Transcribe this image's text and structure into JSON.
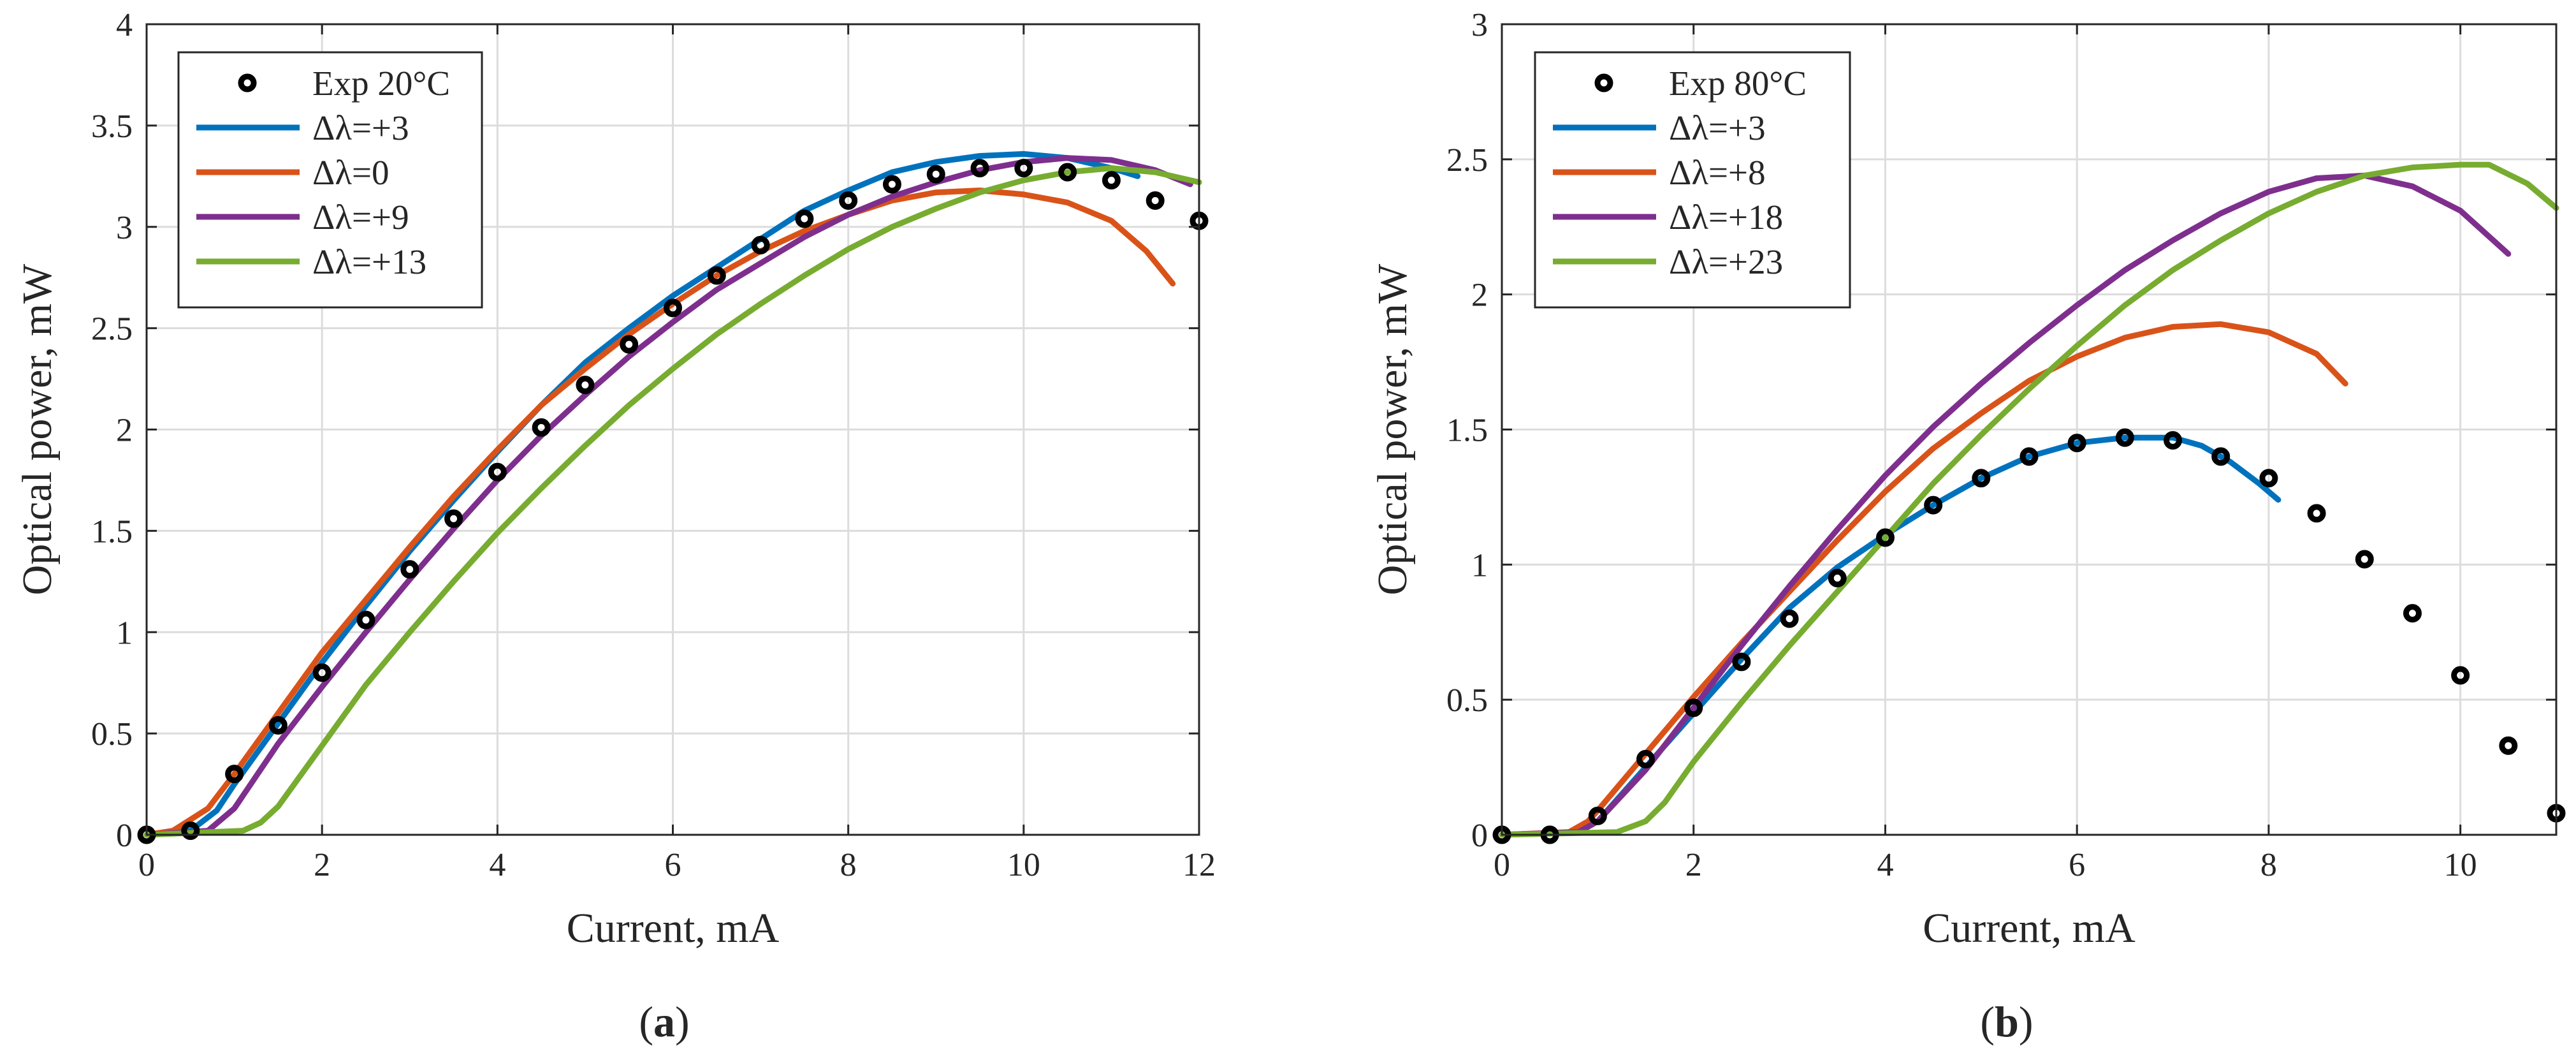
{
  "colors": {
    "blue": "#0072BD",
    "orange": "#D95319",
    "purple": "#7E2F8E",
    "green": "#77AC30",
    "markers": "#000000",
    "grid": "#dcdcdc",
    "axes": "#262626"
  },
  "chart_data": [
    {
      "type": "line",
      "panel": "a",
      "caption_open": "(",
      "caption_letter": "a",
      "caption_close": ")",
      "xlabel": "Current, mA",
      "ylabel": "Optical power, mW",
      "xlim": [
        0,
        12
      ],
      "ylim": [
        0,
        4
      ],
      "xticks": [
        0,
        2,
        4,
        6,
        8,
        10,
        12
      ],
      "yticks": [
        0,
        0.5,
        1,
        1.5,
        2,
        2.5,
        3,
        3.5,
        4
      ],
      "grid": true,
      "legend_position": "top-left",
      "series": [
        {
          "name": "Exp 20°C",
          "kind": "markers",
          "color": "#000000",
          "x": [
            0,
            0.5,
            1,
            1.5,
            2,
            2.5,
            3,
            3.5,
            4,
            4.5,
            5,
            5.5,
            6,
            6.5,
            7,
            7.5,
            8,
            8.5,
            9,
            9.5,
            10,
            10.5,
            11,
            11.5,
            12
          ],
          "y": [
            0,
            0.02,
            0.3,
            0.54,
            0.8,
            1.06,
            1.31,
            1.56,
            1.79,
            2.01,
            2.22,
            2.42,
            2.6,
            2.76,
            2.91,
            3.04,
            3.13,
            3.21,
            3.26,
            3.29,
            3.29,
            3.27,
            3.23,
            3.13,
            3.03
          ]
        },
        {
          "name": "Δλ=+3",
          "kind": "line",
          "color": "#0072BD",
          "x": [
            0,
            0.5,
            0.8,
            1,
            1.5,
            2,
            2.5,
            3,
            3.5,
            4,
            4.5,
            5,
            5.5,
            6,
            6.5,
            7,
            7.5,
            8,
            8.5,
            9,
            9.5,
            10,
            10.5,
            11,
            11.3
          ],
          "y": [
            0,
            0.02,
            0.12,
            0.25,
            0.55,
            0.85,
            1.13,
            1.4,
            1.65,
            1.89,
            2.12,
            2.33,
            2.5,
            2.66,
            2.8,
            2.94,
            3.08,
            3.18,
            3.27,
            3.32,
            3.35,
            3.36,
            3.34,
            3.29,
            3.25
          ]
        },
        {
          "name": "Δλ=0",
          "kind": "line",
          "color": "#D95319",
          "x": [
            0,
            0.3,
            0.7,
            1,
            1.5,
            2,
            2.5,
            3,
            3.5,
            4,
            4.5,
            5,
            5.5,
            6,
            6.5,
            7,
            7.5,
            8,
            8.5,
            9,
            9.5,
            10,
            10.5,
            11,
            11.4,
            11.7
          ],
          "y": [
            0,
            0.02,
            0.13,
            0.3,
            0.6,
            0.9,
            1.16,
            1.42,
            1.67,
            1.9,
            2.12,
            2.3,
            2.47,
            2.62,
            2.76,
            2.88,
            2.98,
            3.06,
            3.13,
            3.17,
            3.18,
            3.16,
            3.12,
            3.03,
            2.88,
            2.72
          ]
        },
        {
          "name": "Δλ=+9",
          "kind": "line",
          "color": "#7E2F8E",
          "x": [
            0,
            0.7,
            1,
            1.5,
            2,
            2.5,
            3,
            3.5,
            4,
            4.5,
            5,
            5.5,
            6,
            6.5,
            7,
            7.5,
            8,
            8.5,
            9,
            9.5,
            10,
            10.5,
            11,
            11.5,
            11.9
          ],
          "y": [
            0,
            0.02,
            0.13,
            0.45,
            0.73,
            1.0,
            1.26,
            1.51,
            1.75,
            1.97,
            2.17,
            2.36,
            2.53,
            2.69,
            2.82,
            2.95,
            3.06,
            3.15,
            3.22,
            3.28,
            3.32,
            3.34,
            3.33,
            3.28,
            3.21
          ]
        },
        {
          "name": "Δλ=+13",
          "kind": "line",
          "color": "#77AC30",
          "x": [
            0,
            1.1,
            1.3,
            1.5,
            2,
            2.5,
            3,
            3.5,
            4,
            4.5,
            5,
            5.5,
            6,
            6.5,
            7,
            7.5,
            8,
            8.5,
            9,
            9.5,
            10,
            10.5,
            11,
            11.5,
            12
          ],
          "y": [
            0,
            0.02,
            0.06,
            0.14,
            0.44,
            0.74,
            1.0,
            1.25,
            1.49,
            1.71,
            1.92,
            2.12,
            2.3,
            2.47,
            2.62,
            2.76,
            2.89,
            3.0,
            3.09,
            3.17,
            3.23,
            3.27,
            3.29,
            3.27,
            3.22
          ]
        }
      ]
    },
    {
      "type": "line",
      "panel": "b",
      "caption_open": "(",
      "caption_letter": "b",
      "caption_close": ")",
      "xlabel": "Current, mA",
      "ylabel": "Optical power, mW",
      "xlim": [
        0,
        11
      ],
      "ylim": [
        0,
        3
      ],
      "xticks": [
        0,
        2,
        4,
        6,
        8,
        10
      ],
      "yticks": [
        0,
        0.5,
        1,
        1.5,
        2,
        2.5,
        3
      ],
      "grid": true,
      "legend_position": "top-left",
      "series": [
        {
          "name": "Exp 80°C",
          "kind": "markers",
          "color": "#000000",
          "x": [
            0,
            0.5,
            1,
            1.5,
            2,
            2.5,
            3,
            3.5,
            4,
            4.5,
            5,
            5.5,
            6,
            6.5,
            7,
            7.5,
            8,
            8.5,
            9,
            9.5,
            10,
            10.5,
            11
          ],
          "y": [
            0,
            0,
            0.07,
            0.28,
            0.47,
            0.64,
            0.8,
            0.95,
            1.1,
            1.22,
            1.32,
            1.4,
            1.45,
            1.47,
            1.46,
            1.4,
            1.32,
            1.19,
            1.02,
            0.82,
            0.59,
            0.33,
            0.08
          ]
        },
        {
          "name": "Δλ=+3",
          "kind": "line",
          "color": "#0072BD",
          "x": [
            0,
            0.8,
            1,
            1.5,
            2,
            2.5,
            3,
            3.5,
            4,
            4.5,
            5,
            5.5,
            6,
            6.5,
            7,
            7.3,
            7.6,
            7.9,
            8.1
          ],
          "y": [
            0,
            0.01,
            0.05,
            0.25,
            0.45,
            0.65,
            0.84,
            0.99,
            1.11,
            1.22,
            1.32,
            1.4,
            1.45,
            1.47,
            1.47,
            1.44,
            1.38,
            1.3,
            1.24
          ]
        },
        {
          "name": "Δλ=+8",
          "kind": "line",
          "color": "#D95319",
          "x": [
            0,
            0.7,
            0.9,
            1,
            1.5,
            2,
            2.5,
            3,
            3.5,
            4,
            4.5,
            5,
            5.5,
            6,
            6.5,
            7,
            7.5,
            8,
            8.5,
            8.8
          ],
          "y": [
            0,
            0.01,
            0.05,
            0.09,
            0.3,
            0.51,
            0.71,
            0.9,
            1.09,
            1.27,
            1.43,
            1.56,
            1.68,
            1.77,
            1.84,
            1.88,
            1.89,
            1.86,
            1.78,
            1.67
          ]
        },
        {
          "name": "Δλ=+18",
          "kind": "line",
          "color": "#7E2F8E",
          "x": [
            0,
            0.8,
            1,
            1.5,
            2,
            2.5,
            3,
            3.5,
            4,
            4.5,
            5,
            5.5,
            6,
            6.5,
            7,
            7.5,
            8,
            8.5,
            9,
            9.5,
            10,
            10.5
          ],
          "y": [
            0,
            0.01,
            0.05,
            0.24,
            0.47,
            0.7,
            0.92,
            1.13,
            1.33,
            1.51,
            1.67,
            1.82,
            1.96,
            2.09,
            2.2,
            2.3,
            2.38,
            2.43,
            2.44,
            2.4,
            2.31,
            2.15
          ]
        },
        {
          "name": "Δλ=+23",
          "kind": "line",
          "color": "#77AC30",
          "x": [
            0,
            1.2,
            1.5,
            1.7,
            2,
            2.5,
            3,
            3.5,
            4,
            4.5,
            5,
            5.5,
            6,
            6.5,
            7,
            7.5,
            8,
            8.5,
            9,
            9.5,
            10,
            10.3,
            10.7,
            11
          ],
          "y": [
            0,
            0.01,
            0.05,
            0.12,
            0.27,
            0.49,
            0.7,
            0.9,
            1.1,
            1.3,
            1.48,
            1.65,
            1.81,
            1.96,
            2.09,
            2.2,
            2.3,
            2.38,
            2.44,
            2.47,
            2.48,
            2.48,
            2.41,
            2.32
          ]
        }
      ]
    }
  ]
}
